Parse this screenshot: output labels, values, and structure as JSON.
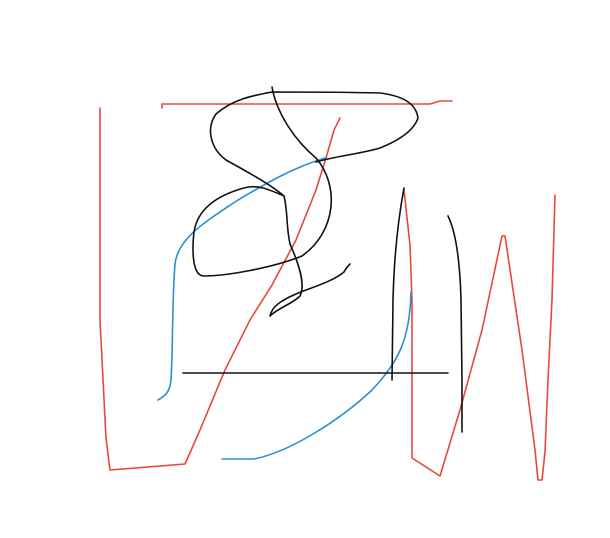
{
  "drawing": {
    "background": "#ffffff",
    "colors": {
      "red": "#e8483a",
      "blue": "#2a8fd6",
      "black": "#111111"
    },
    "strokes": [
      {
        "name": "red-stroke-left-u",
        "color": "red"
      },
      {
        "name": "red-stroke-top-line",
        "color": "red"
      },
      {
        "name": "red-stroke-zigzag-w",
        "color": "red"
      },
      {
        "name": "red-stroke-diagonal",
        "color": "red"
      },
      {
        "name": "blue-stroke-left-arc",
        "color": "blue"
      },
      {
        "name": "blue-stroke-bottom-curve",
        "color": "blue"
      },
      {
        "name": "black-stroke-scribble",
        "color": "black"
      },
      {
        "name": "black-stroke-horizontal",
        "color": "black"
      },
      {
        "name": "black-stroke-vertical-left",
        "color": "black"
      },
      {
        "name": "black-stroke-vertical-right",
        "color": "black"
      }
    ]
  }
}
